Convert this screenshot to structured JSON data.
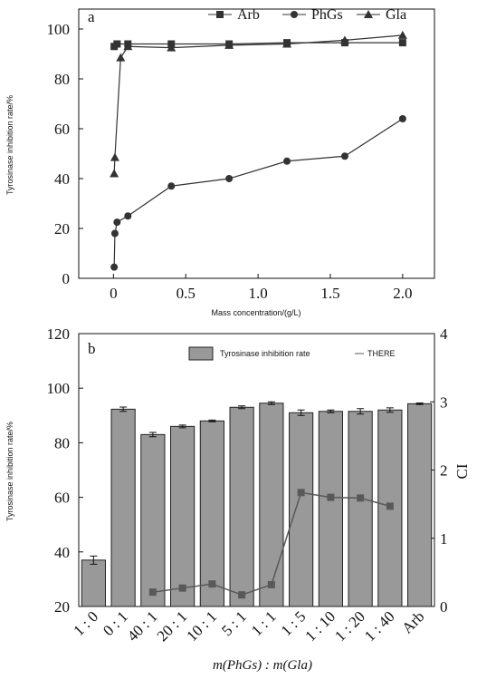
{
  "chart_data": [
    {
      "type": "line",
      "title": "a",
      "x_label": "Mass concentration/(g/L)",
      "y_label": "Tyrosinase inhibition rate/%",
      "xlim": [
        -0.24,
        2.22
      ],
      "xticks": [
        0,
        0.5,
        {
          "value": 1,
          "label": "1.0"
        },
        1.5,
        {
          "value": 2,
          "label": "2.0"
        }
      ],
      "ylim": [
        0,
        108
      ],
      "yticks": [
        0,
        20,
        40,
        60,
        80,
        100
      ],
      "legend": "upper right",
      "series": [
        {
          "name": "Arb",
          "color": "#333333",
          "marker": "square",
          "x": [
            0.005,
            0.025,
            0.1,
            0.4,
            0.8,
            1.2,
            1.6,
            2.0
          ],
          "values": [
            93,
            94,
            94,
            94,
            94,
            94.5,
            94.5,
            94.5
          ]
        },
        {
          "name": "PhGs",
          "color": "#333333",
          "marker": "circle",
          "x": [
            0.005,
            0.01,
            0.025,
            0.1,
            0.4,
            0.8,
            1.2,
            1.6,
            2.0
          ],
          "values": [
            4.5,
            18,
            22.5,
            25,
            37,
            40,
            47,
            49,
            64
          ]
        },
        {
          "name": "Gla",
          "color": "#333333",
          "marker": "triangle",
          "x": [
            0.005,
            0.01,
            0.05,
            0.1,
            0.4,
            0.8,
            1.2,
            1.6,
            2.0
          ],
          "values": [
            42,
            48.5,
            88.5,
            93,
            92.5,
            93.5,
            94,
            95.5,
            97.5
          ]
        }
      ]
    },
    {
      "type": "bar",
      "title": "b",
      "x_label": "m(PhGs) : m(Gla)",
      "y_label": "Tyrosinase inhibition rate/%",
      "y2_label": "CI",
      "categories": [
        "1 : 0",
        "0 : 1",
        "40 : 1",
        "20 : 1",
        "10 : 1",
        "5 : 1",
        "1 : 1",
        "1 : 5",
        "1 : 10",
        "1 : 20",
        "1 : 40",
        "Arb"
      ],
      "ylim": [
        20,
        120
      ],
      "yticks": [
        20,
        40,
        60,
        80,
        100,
        120
      ],
      "y2lim": [
        0,
        4
      ],
      "y2ticks": [
        0,
        1,
        2,
        3,
        4
      ],
      "legend": "upper right",
      "series": [
        {
          "name": "Tyrosinase inhibition rate",
          "color": "#999999",
          "values": [
            37,
            92.3,
            83,
            86,
            88,
            93,
            94.5,
            91,
            91.5,
            91.5,
            92,
            94.3
          ],
          "errors": [
            1.5,
            0.8,
            0.8,
            0.5,
            0.3,
            0.5,
            0.5,
            1,
            0.5,
            1,
            0.8,
            0.3
          ]
        },
        {
          "name": "THERE",
          "color": "#595959",
          "type": "line",
          "axis": "y2",
          "values": [
            null,
            null,
            0.21,
            0.27,
            0.33,
            0.17,
            0.32,
            1.67,
            1.6,
            1.59,
            1.47,
            null
          ]
        }
      ]
    }
  ]
}
